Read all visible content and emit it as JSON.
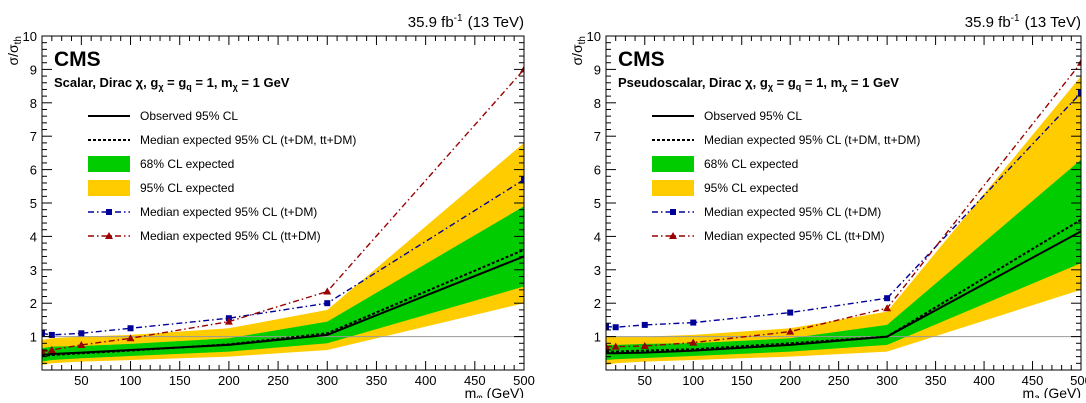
{
  "chart_data": [
    {
      "type": "line",
      "lumi": "35.9 fb",
      "lumi_sup": "-1",
      "energy": "(13 TeV)",
      "experiment": "CMS",
      "model_label": "Scalar, Dirac χ, g",
      "model_sub1": "χ",
      "model_mid1": " = g",
      "model_sub2": "q",
      "model_mid2": " = 1, m",
      "model_sub3": "χ",
      "model_end": " = 1 GeV",
      "ylabel": "σ/σ",
      "ylabel_sub": "th",
      "xlabel": "m",
      "xlabel_sub": "φ",
      "xlabel_unit": " (GeV)",
      "xlim": [
        10,
        500
      ],
      "ylim": [
        0,
        10
      ],
      "xticks": [
        50,
        100,
        150,
        200,
        250,
        300,
        350,
        400,
        450,
        500
      ],
      "yticks": [
        1,
        2,
        3,
        4,
        5,
        6,
        7,
        8,
        9,
        10
      ],
      "x": [
        10,
        20,
        50,
        100,
        200,
        300,
        500
      ],
      "band95": {
        "low": [
          0.15,
          0.2,
          0.25,
          0.3,
          0.4,
          0.6,
          2.0
        ],
        "high": [
          0.9,
          0.95,
          1.0,
          1.05,
          1.25,
          1.8,
          6.8
        ]
      },
      "band68": {
        "low": [
          0.25,
          0.3,
          0.35,
          0.42,
          0.55,
          0.8,
          2.5
        ],
        "high": [
          0.65,
          0.7,
          0.72,
          0.78,
          0.95,
          1.45,
          4.9
        ]
      },
      "series": [
        {
          "name": "Observed 95% CL",
          "values": [
            0.45,
            0.48,
            0.52,
            0.6,
            0.75,
            1.05,
            3.4
          ]
        },
        {
          "name": "Median expected 95% CL (t+DM, tt+DM)",
          "values": [
            0.42,
            0.45,
            0.5,
            0.58,
            0.77,
            1.1,
            3.6
          ]
        },
        {
          "name": "Median expected 95% CL (t+DM)",
          "values": [
            1.1,
            1.05,
            1.1,
            1.25,
            1.55,
            2.0,
            5.7
          ]
        },
        {
          "name": "Median expected 95% CL (tt+DM)",
          "values": [
            0.55,
            0.6,
            0.75,
            0.95,
            1.45,
            2.35,
            9.0
          ]
        }
      ],
      "legend": [
        "Observed 95% CL",
        "Median expected 95% CL (t+DM, tt+DM)",
        "68% CL expected",
        "95% CL expected",
        "Median expected 95% CL (t+DM)",
        "Median expected 95% CL (tt+DM)"
      ],
      "colors": {
        "band68": "#00cc00",
        "band95": "#ffcc00",
        "tdm": "#000099",
        "ttdm": "#990000",
        "refline": "#999999"
      }
    },
    {
      "type": "line",
      "lumi": "35.9 fb",
      "lumi_sup": "-1",
      "energy": "(13 TeV)",
      "experiment": "CMS",
      "model_label": "Pseudoscalar, Dirac χ, g",
      "model_sub1": "χ",
      "model_mid1": " = g",
      "model_sub2": "q",
      "model_mid2": " = 1, m",
      "model_sub3": "χ",
      "model_end": " = 1 GeV",
      "ylabel": "σ/σ",
      "ylabel_sub": "th",
      "xlabel": "m",
      "xlabel_sub": "a",
      "xlabel_unit": " (GeV)",
      "xlim": [
        10,
        500
      ],
      "ylim": [
        0,
        10
      ],
      "xticks": [
        50,
        100,
        150,
        200,
        250,
        300,
        350,
        400,
        450,
        500
      ],
      "yticks": [
        1,
        2,
        3,
        4,
        5,
        6,
        7,
        8,
        9,
        10
      ],
      "x": [
        10,
        20,
        50,
        100,
        200,
        300,
        500
      ],
      "band95": {
        "low": [
          0.15,
          0.2,
          0.25,
          0.3,
          0.4,
          0.55,
          2.4
        ],
        "high": [
          1.0,
          1.0,
          1.0,
          1.05,
          1.25,
          1.75,
          8.8
        ]
      },
      "band68": {
        "low": [
          0.3,
          0.32,
          0.36,
          0.42,
          0.55,
          0.75,
          3.2
        ],
        "high": [
          0.75,
          0.75,
          0.78,
          0.8,
          0.95,
          1.35,
          6.3
        ]
      },
      "series": [
        {
          "name": "Observed 95% CL",
          "values": [
            0.5,
            0.5,
            0.52,
            0.58,
            0.75,
            1.0,
            4.15
          ]
        },
        {
          "name": "Median expected 95% CL (t+DM, tt+DM)",
          "values": [
            0.55,
            0.55,
            0.58,
            0.62,
            0.8,
            1.0,
            4.5
          ]
        },
        {
          "name": "Median expected 95% CL (t+DM)",
          "values": [
            1.3,
            1.28,
            1.35,
            1.42,
            1.72,
            2.15,
            8.3
          ]
        },
        {
          "name": "Median expected 95% CL (tt+DM)",
          "values": [
            0.7,
            0.7,
            0.72,
            0.82,
            1.15,
            1.85,
            9.2
          ]
        }
      ],
      "legend": [
        "Observed 95% CL",
        "Median expected 95% CL (t+DM, tt+DM)",
        "68% CL expected",
        "95% CL expected",
        "Median expected 95% CL (t+DM)",
        "Median expected 95% CL (tt+DM)"
      ],
      "colors": {
        "band68": "#00cc00",
        "band95": "#ffcc00",
        "tdm": "#000099",
        "ttdm": "#990000",
        "refline": "#999999"
      }
    }
  ]
}
